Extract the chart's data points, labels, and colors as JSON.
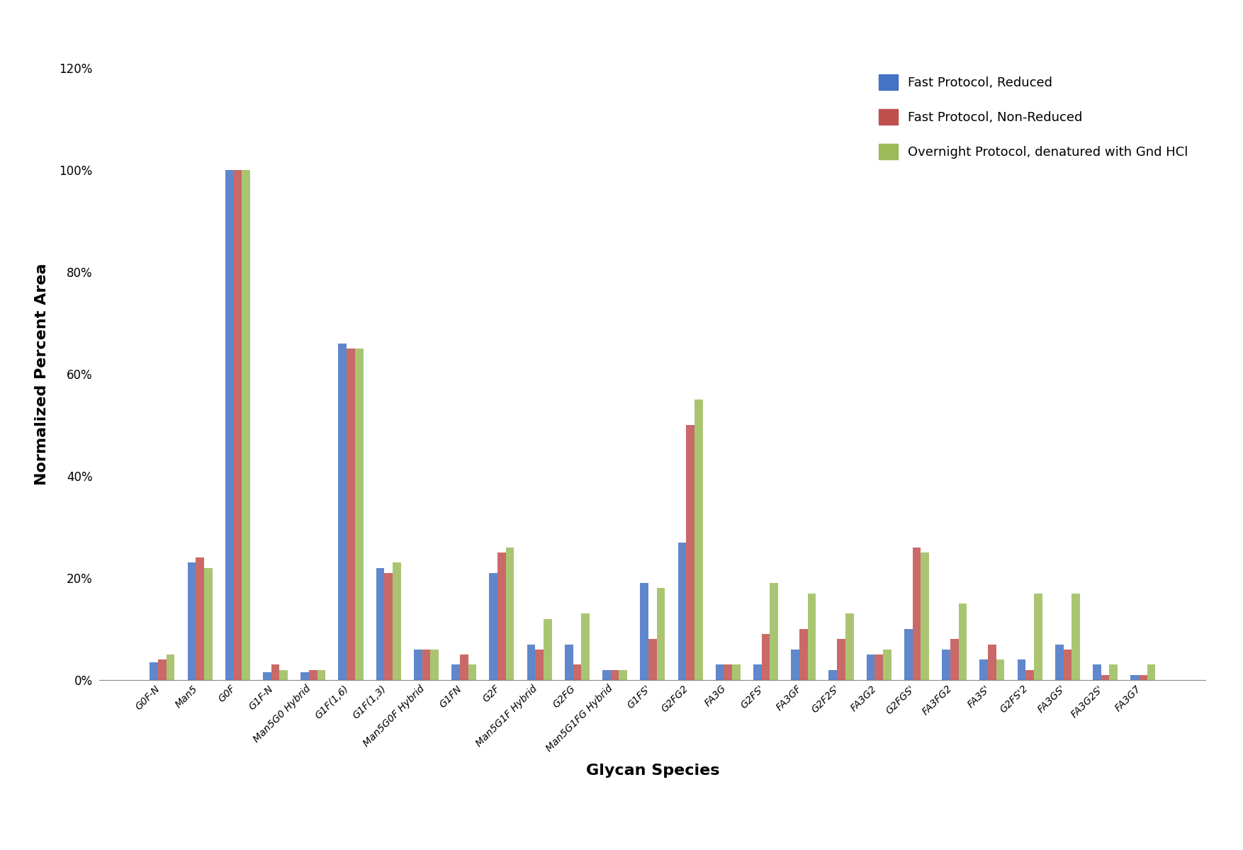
{
  "categories": [
    "G0F-N",
    "Man5",
    "G0F",
    "G1F-N",
    "Man5G0 Hybrid",
    "G1F(1,6)",
    "G1F(1,3)",
    "Man5G0F Hybrid",
    "G1FN",
    "G2F",
    "Man5G1F Hybrid",
    "G2FG",
    "Man5G1FG Hybrid",
    "G1FS'",
    "G2FG2",
    "FA3G",
    "G2FS'",
    "FA3GF",
    "G2F2S'",
    "FA3G2",
    "G2FGS'",
    "FA3FG2",
    "FA3S'",
    "G2FS'2",
    "FA3GS'",
    "FA3G2S'",
    "FA3G7"
  ],
  "fast_reduced": [
    3.5,
    23,
    100,
    1.5,
    1.5,
    66,
    22,
    6,
    3,
    21,
    7,
    7,
    2,
    19,
    27,
    3,
    3,
    6,
    2,
    5,
    10,
    6,
    4,
    4,
    7,
    3,
    1
  ],
  "fast_nonreduced": [
    4,
    24,
    100,
    3,
    2,
    65,
    21,
    6,
    5,
    25,
    6,
    3,
    2,
    8,
    50,
    3,
    9,
    10,
    8,
    5,
    26,
    8,
    7,
    2,
    6,
    1,
    1
  ],
  "overnight": [
    5,
    22,
    100,
    2,
    2,
    65,
    23,
    6,
    3,
    26,
    12,
    13,
    2,
    18,
    55,
    3,
    19,
    17,
    13,
    6,
    25,
    15,
    4,
    17,
    17,
    3,
    3
  ],
  "color_reduced": "#4472C4",
  "color_nonreduced": "#C0504D",
  "color_overnight": "#9BBB59",
  "xlabel": "Glycan Species",
  "ylabel": "Normalized Percent Area",
  "ylim_max": 120,
  "yticks": [
    0,
    20,
    40,
    60,
    80,
    100,
    120
  ],
  "ytick_labels": [
    "0%",
    "20%",
    "40%",
    "60%",
    "80%",
    "100%",
    "120%"
  ],
  "legend_labels": [
    "Fast Protocol, Reduced",
    "Fast Protocol, Non-Reduced",
    "Overnight Protocol, denatured with Gnd HCl"
  ],
  "bar_width": 0.22,
  "background_color": "#ffffff"
}
